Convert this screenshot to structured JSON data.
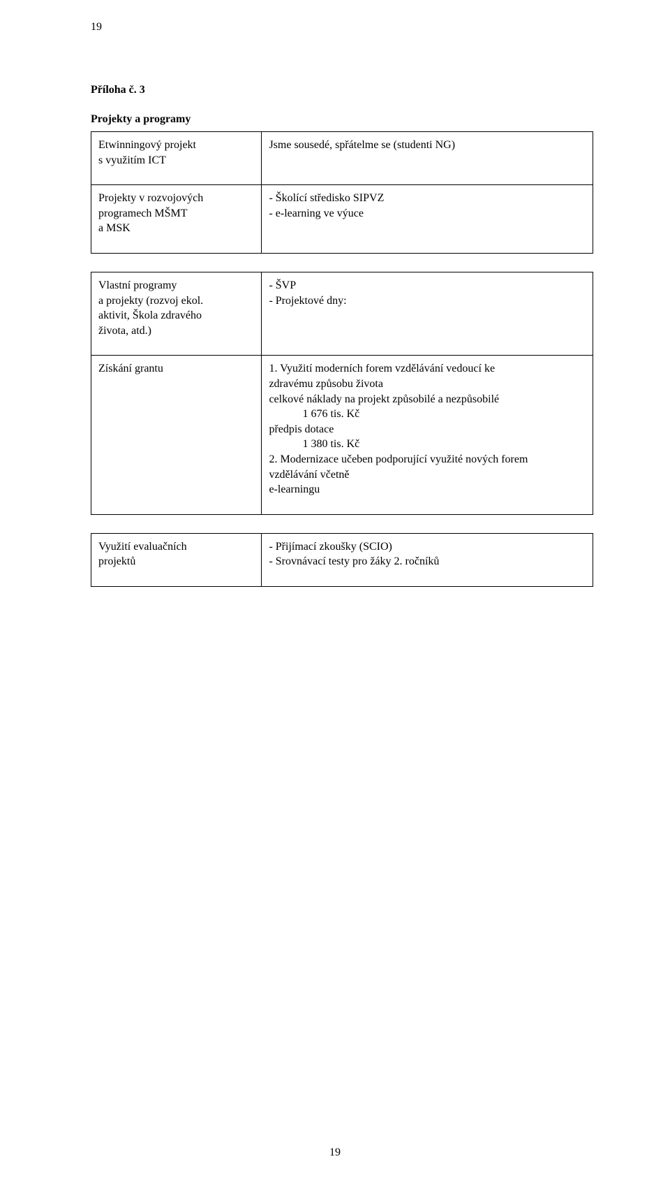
{
  "page_number_top": "19",
  "page_number_bottom": "19",
  "attachment_title": "Příloha č. 3",
  "section_title": "Projekty a programy",
  "tables": [
    {
      "rows": [
        {
          "left": "Etwinningový projekt\ns využitím ICT",
          "right": "Jsme sousedé, spřátelme se (studenti NG)"
        },
        {
          "left": "Projekty v rozvojových\nprogramech MŠMT\na MSK",
          "right": "- Školící středisko SIPVZ\n- e-learning ve výuce"
        }
      ]
    },
    {
      "rows": [
        {
          "left": "Vlastní programy\na projekty (rozvoj ekol.\naktivit, Škola zdravého\nživota, atd.)",
          "right": "- ŠVP\n- Projektové dny:"
        },
        {
          "left": "Získání grantu",
          "right_lines": [
            "1. Využití moderních forem vzdělávání vedoucí ke",
            "zdravému způsobu života",
            "celkové náklady na projekt způsobilé a nezpůsobilé"
          ],
          "right_indent1_a": "1 676 tis. Kč",
          "right_line_mid": " předpis dotace",
          "right_indent1_b": "1 380 tis. Kč",
          "right_lines2": [
            "2. Modernizace učeben podporující využité nových forem",
            "vzdělávání včetně",
            "e-learningu"
          ]
        }
      ]
    },
    {
      "rows": [
        {
          "left": "Využití evaluačních\nprojektů",
          "right": "- Přijímací zkoušky (SCIO)\n- Srovnávací testy pro žáky 2. ročníků"
        }
      ]
    }
  ]
}
